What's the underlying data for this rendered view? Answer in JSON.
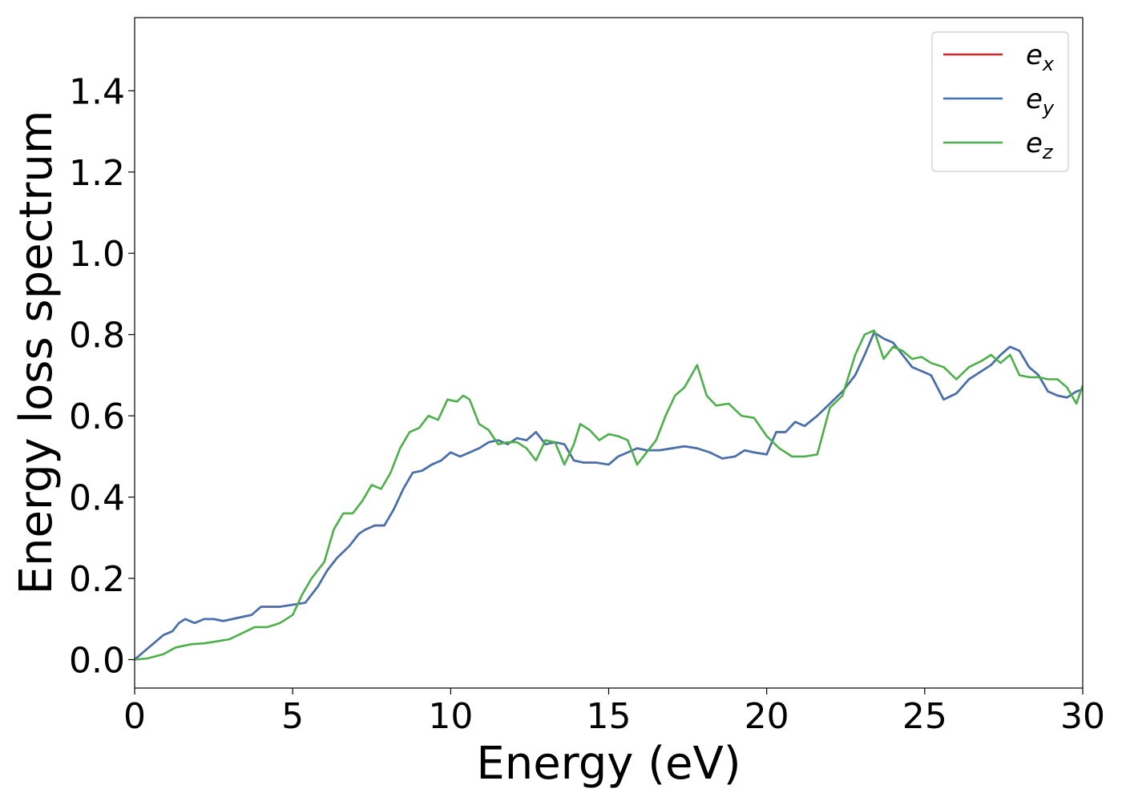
{
  "chart_data": {
    "type": "line",
    "xlabel": "Energy (eV)",
    "ylabel": "Energy loss spectrum",
    "xlim": [
      0,
      30
    ],
    "ylim": [
      -0.07,
      1.58
    ],
    "xticks": [
      0,
      5,
      10,
      15,
      20,
      25,
      30
    ],
    "yticks": [
      0.0,
      0.2,
      0.4,
      0.6,
      0.8,
      1.0,
      1.2,
      1.4
    ],
    "xtick_labels": [
      "0",
      "5",
      "10",
      "15",
      "20",
      "25",
      "30"
    ],
    "ytick_labels": [
      "0.0",
      "0.2",
      "0.4",
      "0.6",
      "0.8",
      "1.0",
      "1.2",
      "1.4"
    ],
    "grid": false,
    "legend": {
      "placement": "top-right"
    },
    "series": [
      {
        "name": "e",
        "subscript": "x",
        "color": "#d62728",
        "x": [
          0,
          0.3,
          0.6,
          0.9,
          1.2,
          1.4,
          1.6,
          1.9,
          2.2,
          2.5,
          2.8,
          3.1,
          3.4,
          3.7,
          4.0,
          4.3,
          4.6,
          5.0,
          5.4,
          5.8,
          6.1,
          6.4,
          6.8,
          7.1,
          7.3,
          7.6,
          7.9,
          8.2,
          8.5,
          8.8,
          9.1,
          9.4,
          9.7,
          10.0,
          10.3,
          10.6,
          10.9,
          11.2,
          11.5,
          11.8,
          12.1,
          12.4,
          12.7,
          13.0,
          13.3,
          13.6,
          13.9,
          14.2,
          14.6,
          15.0,
          15.3,
          15.6,
          15.9,
          16.2,
          16.6,
          17.0,
          17.4,
          17.8,
          18.2,
          18.6,
          19.0,
          19.3,
          19.6,
          20.0,
          20.3,
          20.6,
          20.9,
          21.2,
          21.6,
          22.0,
          22.4,
          22.8,
          23.1,
          23.4,
          23.7,
          24.0,
          24.3,
          24.6,
          24.9,
          25.2,
          25.6,
          26.0,
          26.4,
          26.8,
          27.1,
          27.4,
          27.7,
          28.0,
          28.3,
          28.6,
          28.9,
          29.2,
          29.5,
          29.8,
          30.0
        ],
        "y": [
          0.0,
          0.02,
          0.04,
          0.06,
          0.07,
          0.09,
          0.1,
          0.09,
          0.1,
          0.1,
          0.095,
          0.1,
          0.105,
          0.11,
          0.13,
          0.13,
          0.13,
          0.135,
          0.14,
          0.18,
          0.22,
          0.25,
          0.28,
          0.31,
          0.32,
          0.33,
          0.33,
          0.37,
          0.42,
          0.46,
          0.465,
          0.48,
          0.49,
          0.51,
          0.5,
          0.51,
          0.52,
          0.535,
          0.54,
          0.53,
          0.545,
          0.54,
          0.56,
          0.53,
          0.535,
          0.53,
          0.49,
          0.485,
          0.485,
          0.48,
          0.5,
          0.51,
          0.52,
          0.515,
          0.515,
          0.52,
          0.525,
          0.52,
          0.51,
          0.495,
          0.5,
          0.515,
          0.51,
          0.505,
          0.56,
          0.56,
          0.585,
          0.575,
          0.6,
          0.63,
          0.66,
          0.7,
          0.75,
          0.805,
          0.79,
          0.78,
          0.75,
          0.72,
          0.71,
          0.7,
          0.64,
          0.655,
          0.69,
          0.71,
          0.725,
          0.75,
          0.77,
          0.76,
          0.72,
          0.7,
          0.66,
          0.65,
          0.645,
          0.66,
          0.665
        ]
      },
      {
        "name": "e",
        "subscript": "y",
        "color": "#4272b0",
        "x": [
          0,
          0.3,
          0.6,
          0.9,
          1.2,
          1.4,
          1.6,
          1.9,
          2.2,
          2.5,
          2.8,
          3.1,
          3.4,
          3.7,
          4.0,
          4.3,
          4.6,
          5.0,
          5.4,
          5.8,
          6.1,
          6.4,
          6.8,
          7.1,
          7.3,
          7.6,
          7.9,
          8.2,
          8.5,
          8.8,
          9.1,
          9.4,
          9.7,
          10.0,
          10.3,
          10.6,
          10.9,
          11.2,
          11.5,
          11.8,
          12.1,
          12.4,
          12.7,
          13.0,
          13.3,
          13.6,
          13.9,
          14.2,
          14.6,
          15.0,
          15.3,
          15.6,
          15.9,
          16.2,
          16.6,
          17.0,
          17.4,
          17.8,
          18.2,
          18.6,
          19.0,
          19.3,
          19.6,
          20.0,
          20.3,
          20.6,
          20.9,
          21.2,
          21.6,
          22.0,
          22.4,
          22.8,
          23.1,
          23.4,
          23.7,
          24.0,
          24.3,
          24.6,
          24.9,
          25.2,
          25.6,
          26.0,
          26.4,
          26.8,
          27.1,
          27.4,
          27.7,
          28.0,
          28.3,
          28.6,
          28.9,
          29.2,
          29.5,
          29.8,
          30.0
        ],
        "y": [
          0.0,
          0.02,
          0.04,
          0.06,
          0.07,
          0.09,
          0.1,
          0.09,
          0.1,
          0.1,
          0.095,
          0.1,
          0.105,
          0.11,
          0.13,
          0.13,
          0.13,
          0.135,
          0.14,
          0.18,
          0.22,
          0.25,
          0.28,
          0.31,
          0.32,
          0.33,
          0.33,
          0.37,
          0.42,
          0.46,
          0.465,
          0.48,
          0.49,
          0.51,
          0.5,
          0.51,
          0.52,
          0.535,
          0.54,
          0.53,
          0.545,
          0.54,
          0.56,
          0.53,
          0.535,
          0.53,
          0.49,
          0.485,
          0.485,
          0.48,
          0.5,
          0.51,
          0.52,
          0.515,
          0.515,
          0.52,
          0.525,
          0.52,
          0.51,
          0.495,
          0.5,
          0.515,
          0.51,
          0.505,
          0.56,
          0.56,
          0.585,
          0.575,
          0.6,
          0.63,
          0.66,
          0.7,
          0.75,
          0.805,
          0.79,
          0.78,
          0.75,
          0.72,
          0.71,
          0.7,
          0.64,
          0.655,
          0.69,
          0.71,
          0.725,
          0.75,
          0.77,
          0.76,
          0.72,
          0.7,
          0.66,
          0.65,
          0.645,
          0.66,
          0.665
        ]
      },
      {
        "name": "e",
        "subscript": "z",
        "color": "#4daf4a",
        "x": [
          0,
          0.4,
          0.9,
          1.3,
          1.8,
          2.2,
          2.6,
          3.0,
          3.4,
          3.8,
          4.2,
          4.6,
          5.0,
          5.3,
          5.6,
          6.0,
          6.3,
          6.6,
          6.9,
          7.2,
          7.5,
          7.8,
          8.1,
          8.4,
          8.7,
          9.0,
          9.3,
          9.6,
          9.9,
          10.2,
          10.4,
          10.6,
          10.9,
          11.2,
          11.5,
          11.8,
          12.1,
          12.4,
          12.7,
          13.0,
          13.3,
          13.6,
          13.9,
          14.1,
          14.4,
          14.7,
          15.0,
          15.3,
          15.6,
          15.9,
          16.2,
          16.5,
          16.8,
          17.1,
          17.4,
          17.8,
          18.1,
          18.4,
          18.8,
          19.2,
          19.6,
          20.0,
          20.4,
          20.8,
          21.2,
          21.6,
          22.0,
          22.4,
          22.8,
          23.1,
          23.4,
          23.7,
          24.0,
          24.3,
          24.6,
          24.9,
          25.2,
          25.6,
          26.0,
          26.4,
          26.8,
          27.1,
          27.4,
          27.7,
          28.0,
          28.3,
          28.6,
          28.9,
          29.2,
          29.5,
          29.8,
          30.0
        ],
        "y": [
          0.0,
          0.003,
          0.013,
          0.03,
          0.038,
          0.04,
          0.045,
          0.05,
          0.065,
          0.08,
          0.08,
          0.09,
          0.11,
          0.16,
          0.2,
          0.24,
          0.32,
          0.36,
          0.36,
          0.39,
          0.43,
          0.42,
          0.46,
          0.52,
          0.56,
          0.57,
          0.6,
          0.59,
          0.64,
          0.635,
          0.65,
          0.64,
          0.58,
          0.565,
          0.53,
          0.535,
          0.535,
          0.52,
          0.49,
          0.54,
          0.535,
          0.48,
          0.53,
          0.58,
          0.565,
          0.54,
          0.555,
          0.55,
          0.54,
          0.48,
          0.51,
          0.54,
          0.6,
          0.65,
          0.67,
          0.725,
          0.65,
          0.625,
          0.63,
          0.6,
          0.595,
          0.55,
          0.52,
          0.5,
          0.5,
          0.505,
          0.62,
          0.65,
          0.75,
          0.8,
          0.81,
          0.74,
          0.77,
          0.76,
          0.74,
          0.745,
          0.73,
          0.72,
          0.69,
          0.72,
          0.735,
          0.75,
          0.73,
          0.75,
          0.7,
          0.695,
          0.695,
          0.69,
          0.69,
          0.67,
          0.63,
          0.675
        ]
      }
    ]
  }
}
